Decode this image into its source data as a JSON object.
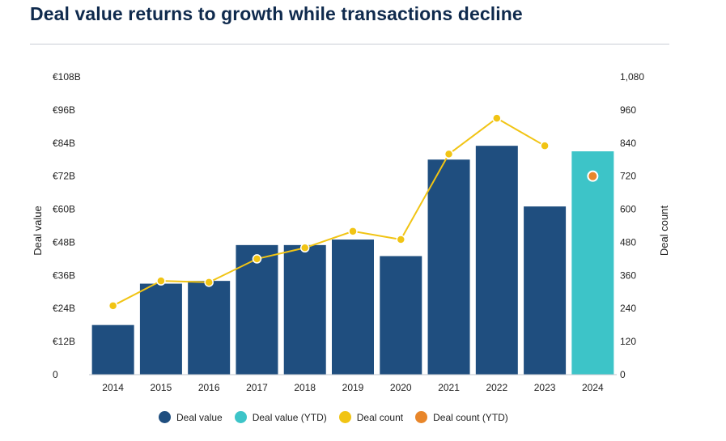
{
  "header": {
    "title": "Deal value returns to growth while transactions decline"
  },
  "chart_data": {
    "type": "bar",
    "categories": [
      "2014",
      "2015",
      "2016",
      "2017",
      "2018",
      "2019",
      "2020",
      "2021",
      "2022",
      "2023",
      "2024"
    ],
    "series": [
      {
        "name": "Deal value",
        "type": "bar",
        "axis": "left",
        "color": "#1f4e7f",
        "values": [
          18,
          33,
          34,
          47,
          47,
          49,
          43,
          78,
          83,
          61,
          null
        ]
      },
      {
        "name": "Deal value (YTD)",
        "type": "bar",
        "axis": "left",
        "color": "#3dc4c8",
        "values": [
          null,
          null,
          null,
          null,
          null,
          null,
          null,
          null,
          null,
          null,
          81
        ]
      },
      {
        "name": "Deal count",
        "type": "line",
        "axis": "right",
        "color": "#f1c414",
        "values": [
          250,
          340,
          335,
          420,
          460,
          520,
          490,
          800,
          930,
          830,
          null
        ]
      },
      {
        "name": "Deal count (YTD)",
        "type": "scatter",
        "axis": "right",
        "color": "#e8862a",
        "values": [
          null,
          null,
          null,
          null,
          null,
          null,
          null,
          null,
          null,
          null,
          720
        ]
      }
    ],
    "ylabel": "Deal value",
    "y2label": "Deal count",
    "ylim": [
      0,
      108
    ],
    "y2lim": [
      0,
      1080
    ],
    "yticks": [
      "0",
      "€12B",
      "€24B",
      "€36B",
      "€48B",
      "€60B",
      "€72B",
      "€84B",
      "€96B",
      "€108B"
    ],
    "y2ticks": [
      "0",
      "120",
      "240",
      "360",
      "480",
      "600",
      "720",
      "840",
      "960",
      "1,080"
    ],
    "grid": false,
    "legend_position": "bottom"
  }
}
